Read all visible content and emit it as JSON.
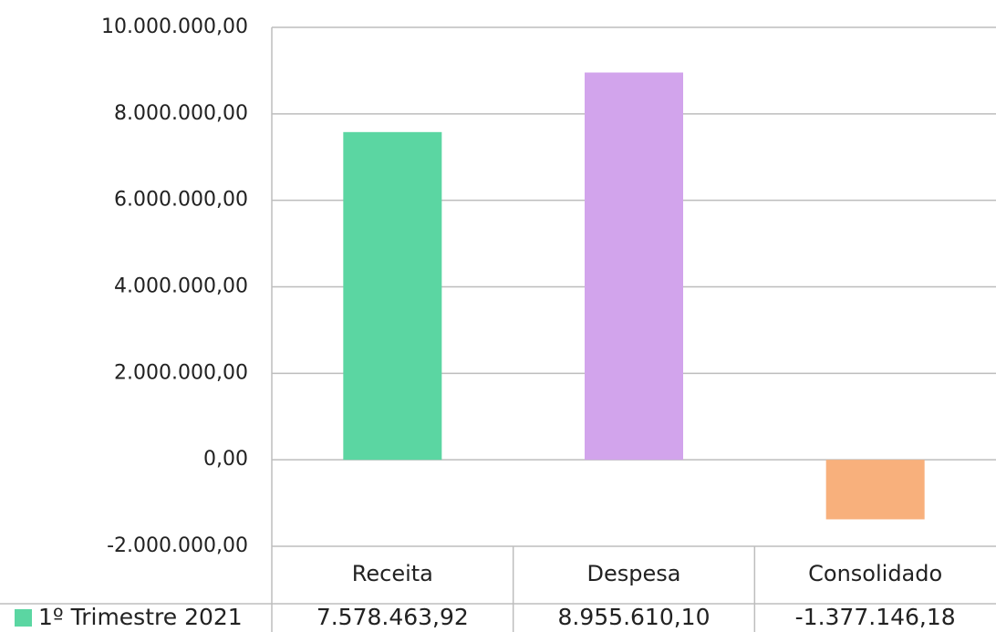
{
  "chart_data": {
    "type": "bar",
    "categories": [
      "Receita",
      "Despesa",
      "Consolidado"
    ],
    "series": [
      {
        "name": "1º Trimestre 2021",
        "values": [
          7578463.92,
          8955610.1,
          -1377146.18
        ],
        "value_labels": [
          "7.578.463,92",
          "8.955.610,10",
          "-1.377.146,18"
        ],
        "colors": [
          "#5bd6a2",
          "#d2a4ec",
          "#f8b07c"
        ],
        "legend_color": "#5bd6a2"
      }
    ],
    "ylim": [
      -2000000,
      10000000
    ],
    "yticks": [
      -2000000,
      0,
      2000000,
      4000000,
      6000000,
      8000000,
      10000000
    ],
    "ytick_labels": [
      "-2.000.000,00",
      "0,00",
      "2.000.000,00",
      "4.000.000,00",
      "6.000.000,00",
      "8.000.000,00",
      "10.000.000,00"
    ],
    "grid": true,
    "data_table": true,
    "title": "",
    "xlabel": "",
    "ylabel": ""
  }
}
